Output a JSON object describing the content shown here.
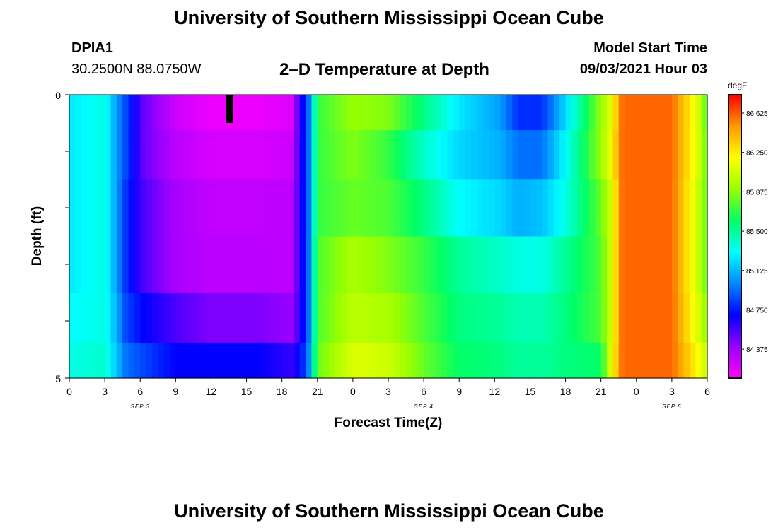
{
  "header": {
    "title": "University of Southern Mississippi Ocean Cube",
    "station": "DPIA1",
    "coords": "30.2500N  88.0750W",
    "plot_title": "2–D Temperature at Depth",
    "model_start_label": "Model Start Time",
    "model_start_value": "09/03/2021 Hour 03"
  },
  "footer": {
    "title": "University of Southern Mississippi Ocean Cube"
  },
  "chart_data": {
    "type": "heatmap",
    "title": "2–D Temperature at Depth",
    "xlabel": "Forecast Time(Z)",
    "ylabel": "Depth (ft)",
    "x_hours_from_start": [
      0,
      54
    ],
    "x_tick_labels": [
      "0",
      "3",
      "6",
      "9",
      "12",
      "15",
      "18",
      "21",
      "0",
      "3",
      "6",
      "9",
      "12",
      "15",
      "18",
      "21",
      "0",
      "3",
      "6"
    ],
    "date_labels": [
      "SEP 3",
      "SEP 4",
      "SEP 5"
    ],
    "ylim": [
      0,
      5
    ],
    "y_tick_labels": [
      "0",
      "5"
    ],
    "colorbar": {
      "unit": "degF",
      "range": [
        84.1,
        86.8
      ],
      "tick_labels": [
        "84.375",
        "84.750",
        "85.125",
        "85.500",
        "85.875",
        "86.250",
        "86.625"
      ],
      "colors": [
        "#ff00ff",
        "#9900ff",
        "#0000ff",
        "#0088ff",
        "#00ffff",
        "#00ff66",
        "#99ff00",
        "#ffff00",
        "#ff9900",
        "#ff0000"
      ]
    },
    "depth_rows": [
      0.25,
      1.0,
      2.0,
      3.0,
      4.0,
      4.75
    ],
    "time_keyframes": [
      0,
      3,
      4,
      4.8,
      6.3,
      9,
      12,
      16,
      18.8,
      19.5,
      20.2,
      21,
      24,
      27,
      30,
      33,
      36.5,
      38,
      40,
      42,
      45,
      45.8,
      46.8,
      51,
      53.2,
      54
    ],
    "values_degF": [
      [
        85.25,
        85.35,
        85.05,
        84.85,
        84.5,
        84.25,
        84.15,
        84.15,
        84.2,
        84.6,
        84.9,
        85.7,
        85.9,
        85.85,
        85.55,
        85.25,
        85.05,
        84.8,
        84.8,
        85.2,
        85.9,
        86.1,
        86.6,
        86.6,
        86.1,
        85.7
      ],
      [
        85.25,
        85.35,
        85.05,
        84.85,
        84.5,
        84.3,
        84.22,
        84.22,
        84.25,
        84.6,
        84.9,
        85.7,
        85.85,
        85.7,
        85.4,
        85.2,
        85.1,
        84.95,
        84.95,
        85.3,
        85.9,
        86.15,
        86.6,
        86.6,
        86.1,
        85.75
      ],
      [
        85.25,
        85.35,
        85.05,
        84.8,
        84.55,
        84.35,
        84.28,
        84.28,
        84.3,
        84.6,
        84.9,
        85.7,
        85.8,
        85.75,
        85.55,
        85.3,
        85.2,
        85.1,
        85.15,
        85.35,
        85.8,
        86.05,
        86.6,
        86.6,
        86.05,
        85.75
      ],
      [
        85.25,
        85.35,
        85.05,
        84.8,
        84.55,
        84.35,
        84.3,
        84.3,
        84.3,
        84.6,
        84.9,
        85.75,
        85.95,
        85.85,
        85.7,
        85.5,
        85.4,
        85.35,
        85.35,
        85.5,
        85.75,
        86.05,
        86.6,
        86.6,
        86.05,
        85.75
      ],
      [
        85.3,
        85.35,
        85.1,
        84.85,
        84.7,
        84.55,
        84.45,
        84.45,
        84.4,
        84.6,
        84.9,
        85.75,
        86.0,
        85.95,
        85.75,
        85.55,
        85.5,
        85.45,
        85.45,
        85.55,
        85.75,
        86.05,
        86.6,
        86.6,
        86.1,
        85.85
      ],
      [
        85.35,
        85.4,
        85.15,
        84.95,
        84.85,
        84.7,
        84.7,
        84.7,
        84.6,
        84.7,
        84.95,
        85.8,
        86.1,
        86.05,
        85.8,
        85.6,
        85.55,
        85.5,
        85.5,
        85.55,
        85.6,
        86.1,
        86.6,
        86.6,
        86.2,
        86.0
      ]
    ]
  }
}
